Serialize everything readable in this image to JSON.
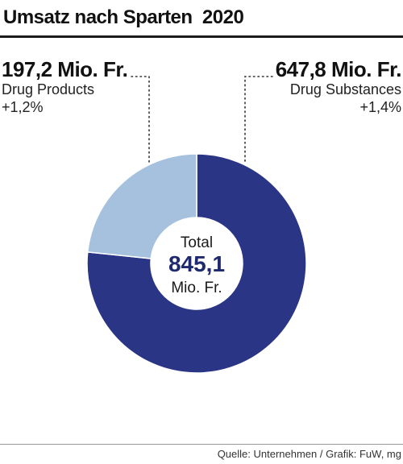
{
  "chart_data": {
    "type": "pie",
    "title": "Umsatz nach Sparten  2020",
    "slices": [
      {
        "name": "Drug Substances",
        "value_label": "647,8 Mio. Fr.",
        "value": 647.8,
        "change": "+1,4%",
        "color": "#2b3585"
      },
      {
        "name": "Drug Products",
        "value_label": "197,2 Mio. Fr.",
        "value": 197.2,
        "change": "+1,2%",
        "color": "#a5c1de"
      }
    ],
    "center": {
      "label": "Total",
      "value": "845,1",
      "unit": "Mio. Fr."
    },
    "source": "Quelle: Unternehmen / Grafik: FuW, mg"
  }
}
